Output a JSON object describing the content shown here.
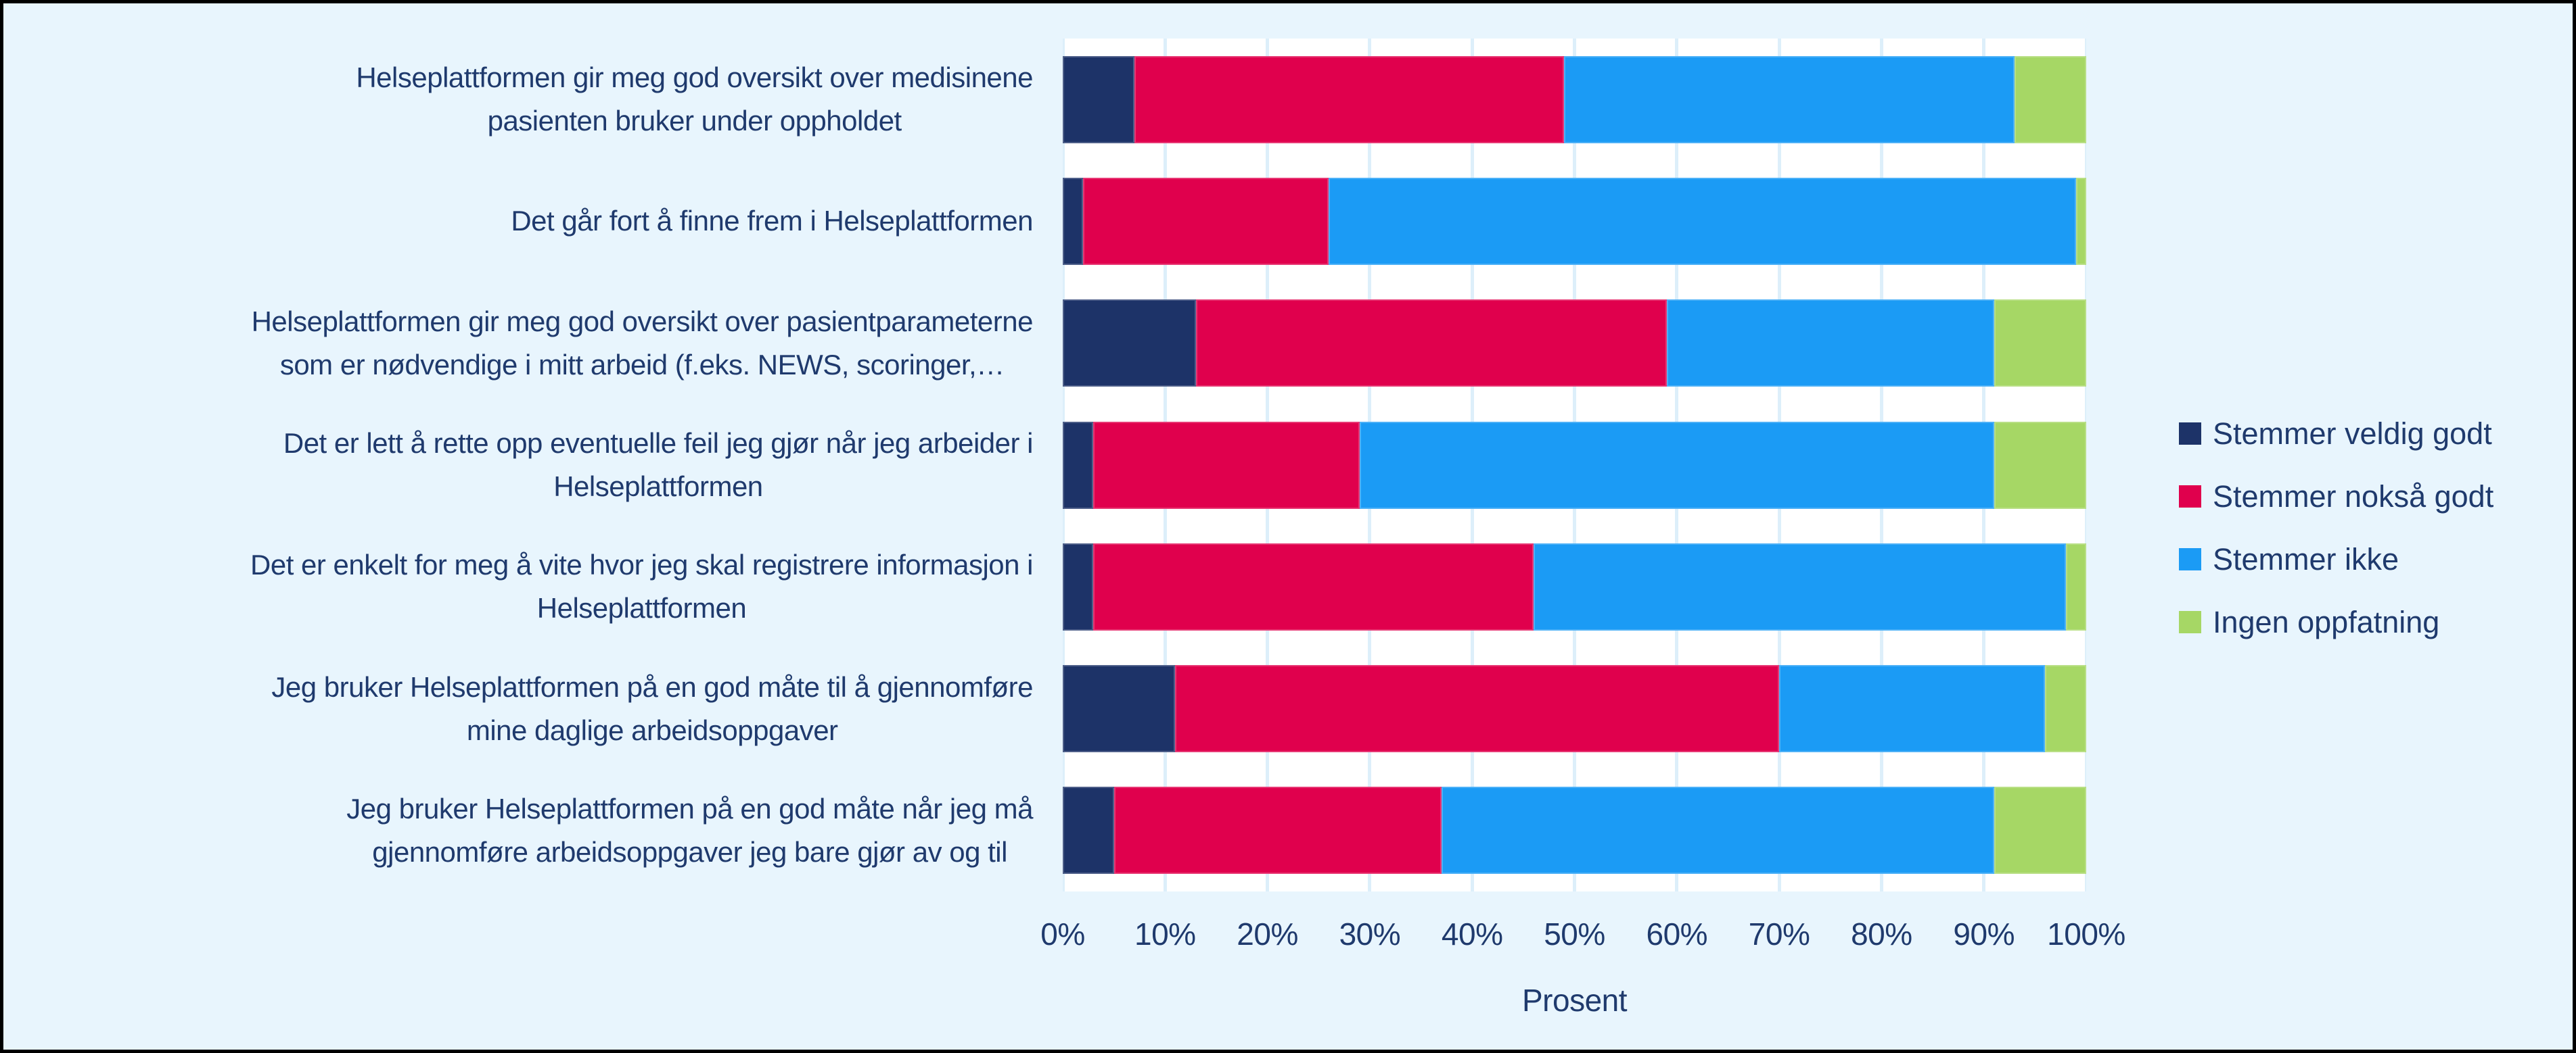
{
  "chart_data": {
    "type": "bar",
    "orientation": "horizontal-stacked",
    "title": "",
    "xlabel": "Prosent",
    "xlim": [
      0,
      100
    ],
    "x_ticks": [
      "0%",
      "10%",
      "20%",
      "30%",
      "40%",
      "50%",
      "60%",
      "70%",
      "80%",
      "90%",
      "100%"
    ],
    "grid": true,
    "legend_position": "right",
    "categories": [
      "Helseplattformen gir meg god oversikt over medisinene\npasienten bruker under oppholdet",
      "Det går fort å finne frem i Helseplattformen",
      "Helseplattformen gir meg god oversikt over pasientparameterne\nsom er nødvendige i mitt arbeid (f.eks. NEWS, scoringer,…",
      "Det er lett å rette opp eventuelle feil jeg gjør når jeg arbeider i\nHelseplattformen",
      "Det er enkelt for meg å vite hvor jeg skal registrere informasjon i\nHelseplattformen",
      "Jeg bruker Helseplattformen på en god måte til å gjennomføre\nmine daglige arbeidsoppgaver",
      "Jeg bruker Helseplattformen på en god måte når jeg må\ngjennomføre arbeidsoppgaver jeg bare gjør av og til"
    ],
    "series": [
      {
        "name": "Stemmer veldig godt",
        "color": "#1d3368",
        "values": [
          7,
          2,
          13,
          3,
          3,
          11,
          5
        ]
      },
      {
        "name": "Stemmer nokså godt",
        "color": "#e0004d",
        "values": [
          42,
          24,
          46,
          26,
          43,
          59,
          32
        ]
      },
      {
        "name": "Stemmer ikke",
        "color": "#1b9bf5",
        "values": [
          44,
          73,
          32,
          62,
          52,
          26,
          54
        ]
      },
      {
        "name": "Ingen oppfatning",
        "color": "#a6d765",
        "values": [
          7,
          1,
          9,
          9,
          2,
          4,
          9
        ]
      }
    ]
  },
  "colors": {
    "page_background": "#e8f5fd",
    "plot_background": "#ffffff",
    "gridline": "#ddeffa",
    "text": "#1f3a6d",
    "frame": "#000000"
  }
}
